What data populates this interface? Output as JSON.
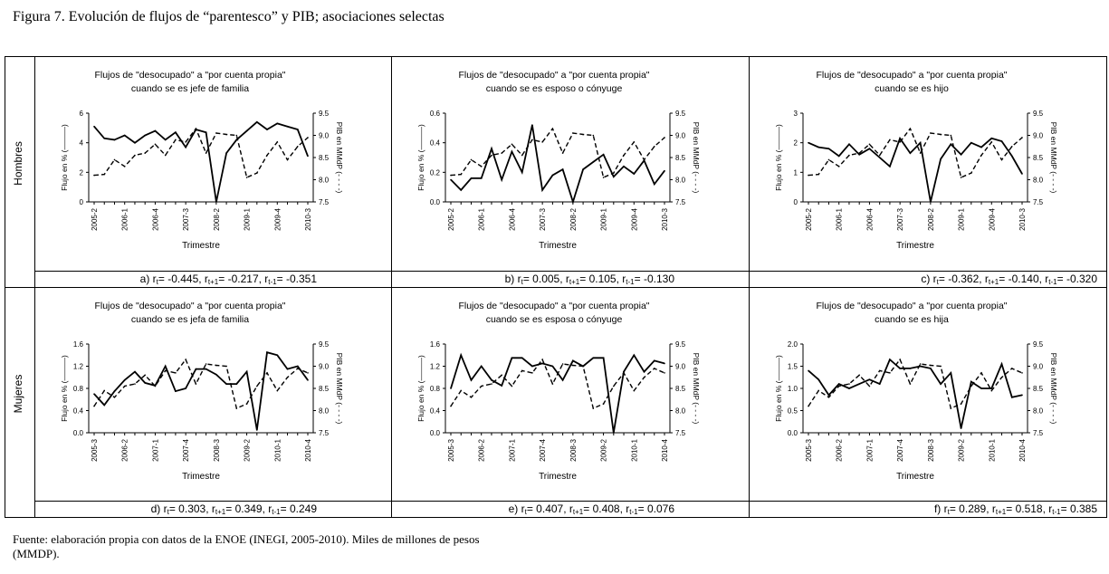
{
  "figure": {
    "title": "Figura 7. Evolución de flujos de “parentesco” y PIB; asociaciones selectas",
    "source_line1_a": "Fuente: elaboración propia con datos de la ",
    "source_enoe": "ENOE",
    "source_line1_b": " (INEGI, 2005-2010). Miles de millones de pesos",
    "source_line2": "(MMDP)."
  },
  "rows": [
    {
      "label": "Hombres"
    },
    {
      "label": "Mujeres"
    }
  ],
  "common": {
    "xlabel": "Trimestre",
    "ylabel_left": "Flujo en % (———)",
    "ylabel_right": "PIB en MMdP (- - - -)"
  },
  "chart_data": [
    {
      "type": "line",
      "title": [
        "Flujos de \"desocupado\" a \"por cuenta propia\"",
        "cuando se es jefe de familia"
      ],
      "categories": [
        "2005-2",
        "2005-3",
        "2005-4",
        "2006-1",
        "2006-2",
        "2006-3",
        "2006-4",
        "2007-1",
        "2007-2",
        "2007-3",
        "2007-4",
        "2008-1",
        "2008-2",
        "2008-3",
        "2008-4",
        "2009-1",
        "2009-2",
        "2009-3",
        "2009-4",
        "2010-1",
        "2010-2",
        "2010-3"
      ],
      "tick_labels": [
        "2005-2",
        "2006-1",
        "2006-4",
        "2007-3",
        "2008-2",
        "2009-1",
        "2009-4",
        "2010-3"
      ],
      "ylim_left": [
        0,
        6
      ],
      "yticks_left": [
        "0",
        "2",
        "4",
        "6"
      ],
      "ylim_right": [
        7.5,
        9.5
      ],
      "yticks_right": [
        "7.5",
        "8.0",
        "8.5",
        "9.0",
        "9.5"
      ],
      "series": [
        {
          "name": "Flujo en %",
          "axis": "left",
          "style": "solid",
          "values": [
            5.1,
            4.3,
            4.2,
            4.5,
            4.0,
            4.5,
            4.8,
            4.2,
            4.7,
            3.7,
            4.9,
            4.7,
            0.0,
            3.3,
            4.2,
            4.8,
            5.4,
            4.9,
            5.3,
            5.1,
            4.9,
            3.1
          ]
        },
        {
          "name": "PIB",
          "axis": "right",
          "style": "dashed",
          "values": [
            8.1,
            8.12,
            8.45,
            8.3,
            8.55,
            8.6,
            8.8,
            8.55,
            8.9,
            8.85,
            9.15,
            8.6,
            9.05,
            9.02,
            9.0,
            8.05,
            8.15,
            8.55,
            8.85,
            8.45,
            8.75,
            8.95
          ]
        }
      ],
      "correlation": {
        "label": "a)",
        "rt": "-0.445",
        "rt1": "-0.217",
        "rtm1": "-0.351"
      }
    },
    {
      "type": "line",
      "title": [
        "Flujos de \"desocupado\" a \"por cuenta propia\"",
        "cuando se es esposo o cónyuge"
      ],
      "categories": [
        "2005-2",
        "2005-3",
        "2005-4",
        "2006-1",
        "2006-2",
        "2006-3",
        "2006-4",
        "2007-1",
        "2007-2",
        "2007-3",
        "2007-4",
        "2008-1",
        "2008-2",
        "2008-3",
        "2008-4",
        "2009-1",
        "2009-2",
        "2009-3",
        "2009-4",
        "2010-1",
        "2010-2",
        "2010-3"
      ],
      "tick_labels": [
        "2005-2",
        "2006-1",
        "2006-4",
        "2007-3",
        "2008-2",
        "2009-1",
        "2009-4",
        "2010-3"
      ],
      "ylim_left": [
        0,
        0.6
      ],
      "yticks_left": [
        "0.0",
        "0.2",
        "0.4",
        "0.6"
      ],
      "ylim_right": [
        7.5,
        9.5
      ],
      "yticks_right": [
        "7.5",
        "8.0",
        "8.5",
        "9.0",
        "9.5"
      ],
      "series": [
        {
          "name": "Flujo en %",
          "axis": "left",
          "style": "solid",
          "values": [
            0.15,
            0.08,
            0.16,
            0.16,
            0.36,
            0.15,
            0.34,
            0.2,
            0.52,
            0.08,
            0.18,
            0.22,
            0.0,
            0.22,
            0.27,
            0.32,
            0.17,
            0.24,
            0.19,
            0.28,
            0.12,
            0.21
          ]
        },
        {
          "name": "PIB",
          "axis": "right",
          "style": "dashed",
          "values": [
            8.1,
            8.12,
            8.45,
            8.3,
            8.55,
            8.6,
            8.8,
            8.55,
            8.9,
            8.85,
            9.15,
            8.6,
            9.05,
            9.02,
            9.0,
            8.05,
            8.15,
            8.55,
            8.85,
            8.45,
            8.75,
            8.95
          ]
        }
      ],
      "correlation": {
        "label": "b)",
        "rt": "0.005",
        "rt1": "0.105",
        "rtm1": "-0.130"
      }
    },
    {
      "type": "line",
      "title": [
        "Flujos de \"desocupado\" a \"por cuenta propia\"",
        "cuando se es hijo"
      ],
      "categories": [
        "2005-2",
        "2005-3",
        "2005-4",
        "2006-1",
        "2006-2",
        "2006-3",
        "2006-4",
        "2007-1",
        "2007-2",
        "2007-3",
        "2007-4",
        "2008-1",
        "2008-2",
        "2008-3",
        "2008-4",
        "2009-1",
        "2009-2",
        "2009-3",
        "2009-4",
        "2010-1",
        "2010-2",
        "2010-3"
      ],
      "tick_labels": [
        "2005-2",
        "2006-1",
        "2006-4",
        "2007-3",
        "2008-2",
        "2009-1",
        "2009-4",
        "2010-3"
      ],
      "ylim_left": [
        0,
        3
      ],
      "yticks_left": [
        "0",
        "1",
        "2",
        "3"
      ],
      "ylim_right": [
        7.5,
        9.5
      ],
      "yticks_right": [
        "7.5",
        "8.0",
        "8.5",
        "9.0",
        "9.5"
      ],
      "series": [
        {
          "name": "Flujo en %",
          "axis": "left",
          "style": "solid",
          "values": [
            2.0,
            1.85,
            1.8,
            1.55,
            1.95,
            1.6,
            1.8,
            1.5,
            1.2,
            2.15,
            1.65,
            2.0,
            0.0,
            1.45,
            1.95,
            1.6,
            2.0,
            1.85,
            2.15,
            2.05,
            1.55,
            0.95
          ]
        },
        {
          "name": "PIB",
          "axis": "right",
          "style": "dashed",
          "values": [
            8.1,
            8.12,
            8.45,
            8.3,
            8.55,
            8.6,
            8.8,
            8.55,
            8.9,
            8.85,
            9.15,
            8.6,
            9.05,
            9.02,
            9.0,
            8.05,
            8.15,
            8.55,
            8.85,
            8.45,
            8.75,
            8.95
          ]
        }
      ],
      "correlation": {
        "label": "c)",
        "rt": "-0.362",
        "rt1": "-0.140",
        "rtm1": "-0.320"
      }
    },
    {
      "type": "line",
      "title": [
        "Flujos de \"desocupado\" a \"por cuenta propia\"",
        "cuando se es jefa de familia"
      ],
      "categories": [
        "2005-3",
        "2005-4",
        "2006-1",
        "2006-2",
        "2006-3",
        "2006-4",
        "2007-1",
        "2007-2",
        "2007-3",
        "2007-4",
        "2008-1",
        "2008-2",
        "2008-3",
        "2008-4",
        "2009-1",
        "2009-2",
        "2009-3",
        "2009-4",
        "2010-1",
        "2010-2",
        "2010-3",
        "2010-4"
      ],
      "tick_labels": [
        "2005-3",
        "2006-2",
        "2007-1",
        "2007-4",
        "2008-3",
        "2009-2",
        "2010-1",
        "2010-4"
      ],
      "ylim_left": [
        0,
        1.6
      ],
      "yticks_left": [
        "0.0",
        "0.4",
        "0.8",
        "1.2",
        "1.6"
      ],
      "ylim_right": [
        7.5,
        9.5
      ],
      "yticks_right": [
        "7.5",
        "8.0",
        "8.5",
        "9.0",
        "9.5"
      ],
      "series": [
        {
          "name": "Flujo en %",
          "axis": "left",
          "style": "solid",
          "values": [
            0.7,
            0.5,
            0.75,
            0.95,
            1.1,
            0.9,
            0.85,
            1.2,
            0.75,
            0.8,
            1.15,
            1.15,
            1.05,
            0.88,
            0.88,
            1.1,
            0.05,
            1.45,
            1.4,
            1.15,
            1.2,
            0.95
          ]
        },
        {
          "name": "PIB",
          "axis": "right",
          "style": "dashed",
          "values": [
            8.1,
            8.45,
            8.3,
            8.55,
            8.6,
            8.8,
            8.55,
            8.9,
            8.85,
            9.15,
            8.6,
            9.05,
            9.02,
            9.0,
            8.05,
            8.15,
            8.55,
            8.85,
            8.45,
            8.75,
            8.95,
            8.85
          ]
        }
      ],
      "correlation": {
        "label": "d)",
        "rt": "0.303",
        "rt1": "0.349",
        "rtm1": "0.249"
      }
    },
    {
      "type": "line",
      "title": [
        "Flujos de \"desocupado\" a \"por cuenta propia\"",
        "cuando se es esposa o cónyuge"
      ],
      "categories": [
        "2005-3",
        "2005-4",
        "2006-1",
        "2006-2",
        "2006-3",
        "2006-4",
        "2007-1",
        "2007-2",
        "2007-3",
        "2007-4",
        "2008-1",
        "2008-2",
        "2008-3",
        "2008-4",
        "2009-1",
        "2009-2",
        "2009-3",
        "2009-4",
        "2010-1",
        "2010-2",
        "2010-3",
        "2010-4"
      ],
      "tick_labels": [
        "2005-3",
        "2006-2",
        "2007-1",
        "2007-4",
        "2008-3",
        "2009-2",
        "2010-1",
        "2010-4"
      ],
      "ylim_left": [
        0,
        1.6
      ],
      "yticks_left": [
        "0.0",
        "0.4",
        "0.8",
        "1.2",
        "1.6"
      ],
      "ylim_right": [
        7.5,
        9.5
      ],
      "yticks_right": [
        "7.5",
        "8.0",
        "8.5",
        "9.0",
        "9.5"
      ],
      "series": [
        {
          "name": "Flujo en %",
          "axis": "left",
          "style": "solid",
          "values": [
            0.8,
            1.4,
            0.95,
            1.2,
            0.95,
            0.85,
            1.35,
            1.35,
            1.2,
            1.25,
            1.2,
            0.95,
            1.3,
            1.2,
            1.35,
            1.35,
            0.0,
            1.1,
            1.4,
            1.1,
            1.3,
            1.25
          ]
        },
        {
          "name": "PIB",
          "axis": "right",
          "style": "dashed",
          "values": [
            8.1,
            8.45,
            8.3,
            8.55,
            8.6,
            8.8,
            8.55,
            8.9,
            8.85,
            9.15,
            8.6,
            9.05,
            9.02,
            9.0,
            8.05,
            8.15,
            8.55,
            8.85,
            8.45,
            8.75,
            8.95,
            8.85
          ]
        }
      ],
      "correlation": {
        "label": "e)",
        "rt": "0.407",
        "rt1": "0.408",
        "rtm1": "0.076"
      }
    },
    {
      "type": "line",
      "title": [
        "Flujos de \"desocupado\" a \"por cuenta propia\"",
        "cuando se es hija"
      ],
      "categories": [
        "2005-3",
        "2005-4",
        "2006-1",
        "2006-2",
        "2006-3",
        "2006-4",
        "2007-1",
        "2007-2",
        "2007-3",
        "2007-4",
        "2008-1",
        "2008-2",
        "2008-3",
        "2008-4",
        "2009-1",
        "2009-2",
        "2009-3",
        "2009-4",
        "2010-1",
        "2010-2",
        "2010-3",
        "2010-4"
      ],
      "tick_labels": [
        "2005-3",
        "2006-2",
        "2007-1",
        "2007-4",
        "2008-3",
        "2009-2",
        "2010-1",
        "2010-4"
      ],
      "ylim_left": [
        0,
        2.0
      ],
      "yticks_left": [
        "0.0",
        "0.5",
        "1.0",
        "1.5",
        "2.0"
      ],
      "ylim_right": [
        7.5,
        9.5
      ],
      "yticks_right": [
        "7.5",
        "8.0",
        "8.5",
        "9.0",
        "9.5"
      ],
      "series": [
        {
          "name": "Flujo en %",
          "axis": "left",
          "style": "solid",
          "values": [
            1.4,
            1.2,
            0.85,
            1.1,
            1.0,
            1.1,
            1.2,
            1.1,
            1.65,
            1.45,
            1.45,
            1.5,
            1.45,
            1.1,
            1.35,
            0.1,
            1.15,
            1.0,
            1.0,
            1.55,
            0.8,
            0.85
          ]
        },
        {
          "name": "PIB",
          "axis": "right",
          "style": "dashed",
          "values": [
            8.1,
            8.45,
            8.3,
            8.55,
            8.6,
            8.8,
            8.55,
            8.9,
            8.85,
            9.15,
            8.6,
            9.05,
            9.02,
            9.0,
            8.05,
            8.15,
            8.55,
            8.85,
            8.45,
            8.75,
            8.95,
            8.85
          ]
        }
      ],
      "correlation": {
        "label": "f)",
        "rt": "0.289",
        "rt1": "0.518",
        "rtm1": "0.385"
      }
    }
  ]
}
